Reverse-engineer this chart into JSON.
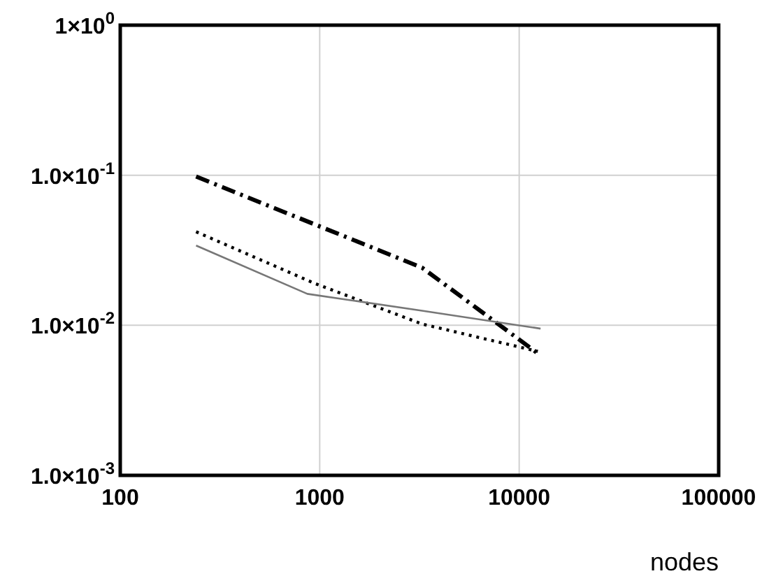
{
  "chart_data": {
    "type": "line",
    "xlabel": "nodes",
    "log": "xy",
    "grid": true,
    "xlim": [
      100,
      100000
    ],
    "xticks": [
      100,
      1000,
      10000,
      100000
    ],
    "ylim": [
      0.001,
      1
    ],
    "yticks": [
      {
        "value": 0.001,
        "label": "1.0×10$^{-3}$"
      },
      {
        "value": 0.01,
        "label": "1.0×10$^{-2}$"
      },
      {
        "value": 0.1,
        "label": "1.0×10$^{-1}$"
      },
      {
        "value": 1,
        "label": "1×10$^{0}$"
      }
    ],
    "series": [
      {
        "color": "#000000",
        "line_style": "dashed",
        "x": [
          240,
          3260,
          12400
        ],
        "values": [
          0.098,
          0.0242,
          0.0065
        ]
      },
      {
        "color": "#000000",
        "line_style": "dotted",
        "x": [
          240,
          945,
          3260,
          12400
        ],
        "values": [
          0.042,
          0.019,
          0.0102,
          0.0067
        ]
      },
      {
        "color": "#777777",
        "line_style": "solid",
        "x": [
          240,
          867,
          3260,
          12800
        ],
        "values": [
          0.034,
          0.0162,
          0.0125,
          0.0095
        ]
      }
    ]
  }
}
